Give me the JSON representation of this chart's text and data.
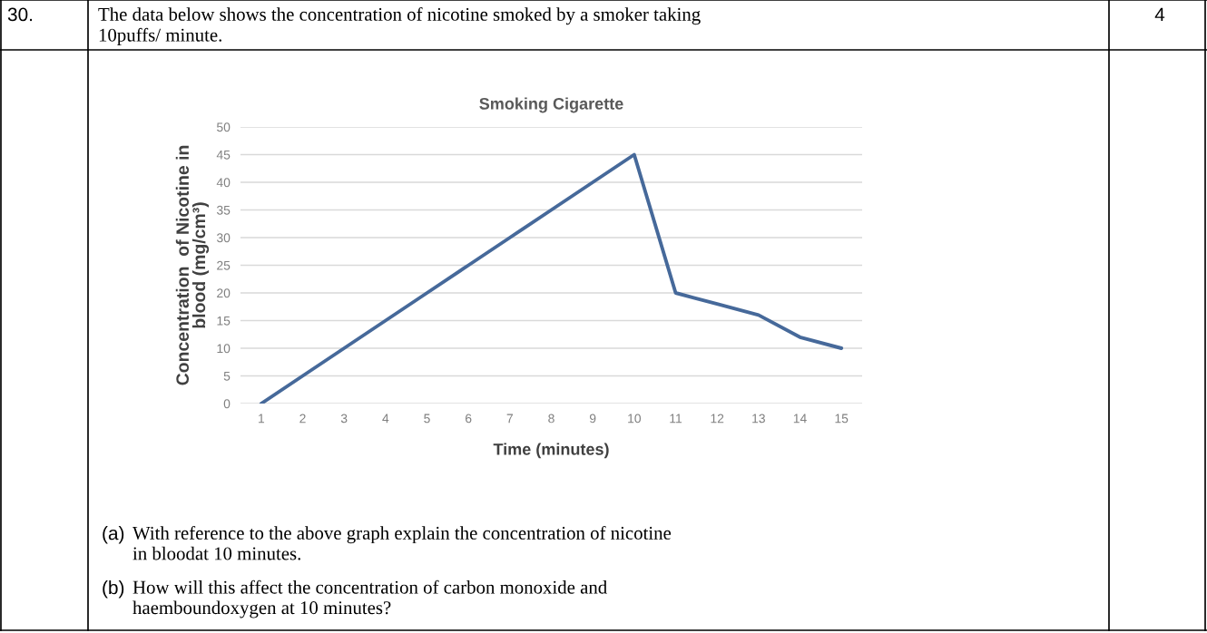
{
  "chart_data": {
    "type": "line",
    "title": "Smoking Cigarette",
    "xlabel": "Time (minutes)",
    "ylabel": "Concentration  of Nicotine in\nblood (mg/cm³)",
    "categories": [
      "1",
      "2",
      "3",
      "4",
      "5",
      "6",
      "7",
      "8",
      "9",
      "10",
      "11",
      "12",
      "13",
      "14",
      "15"
    ],
    "series": [
      {
        "color": "#46699a",
        "values": [
          0,
          5,
          10,
          15,
          20,
          25,
          30,
          35,
          40,
          45,
          20,
          18,
          16,
          12,
          10
        ]
      }
    ],
    "ylim": [
      0,
      50
    ],
    "yticks": [
      0,
      5,
      10,
      15,
      20,
      25,
      30,
      35,
      40,
      45,
      50
    ],
    "grid": "y",
    "marker": "none",
    "line_style": "solid",
    "annotations": [
      "30.",
      "The data below shows the concentration of nicotine smoked by a smoker taking\n10puffs/ minute.",
      "4",
      "(a)",
      "With reference to the above graph explain the concentration of nicotine\nin bloodat 10 minutes.",
      "(b)",
      "How will this affect the concentration of carbon monoxide and\nhaemboundoxygen at 10 minutes?"
    ]
  }
}
